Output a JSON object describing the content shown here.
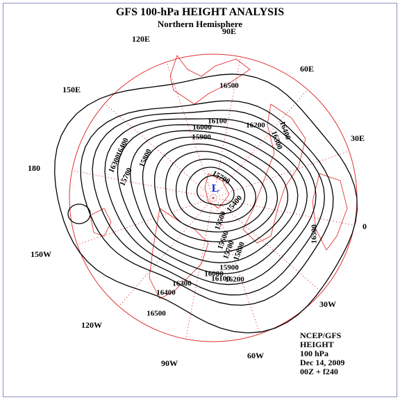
{
  "title": "GFS 100-hPa HEIGHT ANALYSIS",
  "subtitle": "Northern Hemisphere",
  "longitude_labels": [
    "90E",
    "60E",
    "30E",
    "0",
    "30W",
    "60W",
    "90W",
    "120W",
    "150W",
    "180",
    "150E",
    "120E"
  ],
  "contour_labels": [
    "16500",
    "16100",
    "16200",
    "16000",
    "15900",
    "16400",
    "16300",
    "16400",
    "16300",
    "15800",
    "15700",
    "15700",
    "15400",
    "15500",
    "15600",
    "15700",
    "15800",
    "15900",
    "16000",
    "16100",
    "16200",
    "16300",
    "16400",
    "16500",
    "16500"
  ],
  "low_marker": "L",
  "info": [
    "NCEP/GFS",
    "HEIGHT",
    "100 hPa",
    "Dec 14, 2009",
    "00Z + f240"
  ]
}
